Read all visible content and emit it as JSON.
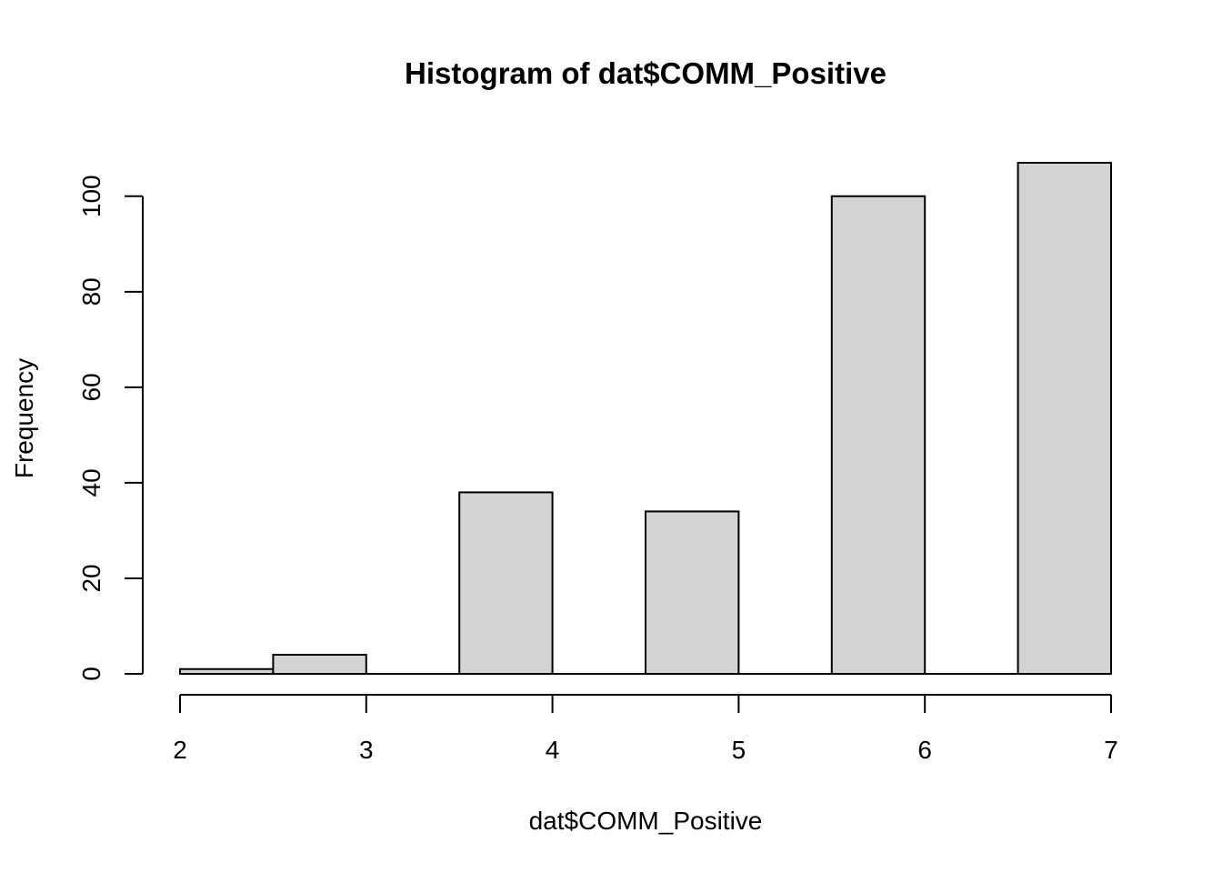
{
  "chart_data": {
    "type": "bar",
    "title": "Histogram of dat$COMM_Positive",
    "xlabel": "dat$COMM_Positive",
    "ylabel": "Frequency",
    "bins": [
      {
        "x0": 2.0,
        "x1": 2.5,
        "count": 1
      },
      {
        "x0": 2.5,
        "x1": 3.0,
        "count": 4
      },
      {
        "x0": 3.0,
        "x1": 3.5,
        "count": 0
      },
      {
        "x0": 3.5,
        "x1": 4.0,
        "count": 38
      },
      {
        "x0": 4.0,
        "x1": 4.5,
        "count": 0
      },
      {
        "x0": 4.5,
        "x1": 5.0,
        "count": 34
      },
      {
        "x0": 5.0,
        "x1": 5.5,
        "count": 0
      },
      {
        "x0": 5.5,
        "x1": 6.0,
        "count": 100
      },
      {
        "x0": 6.0,
        "x1": 6.5,
        "count": 0
      },
      {
        "x0": 6.5,
        "x1": 7.0,
        "count": 107
      }
    ],
    "xlim": [
      2,
      7
    ],
    "ylim": [
      0,
      107
    ],
    "x_ticks": [
      2,
      3,
      4,
      5,
      6,
      7
    ],
    "y_ticks": [
      0,
      20,
      40,
      60,
      80,
      100
    ],
    "bar_color": "#d3d3d3",
    "grid": false,
    "legend": "none"
  }
}
